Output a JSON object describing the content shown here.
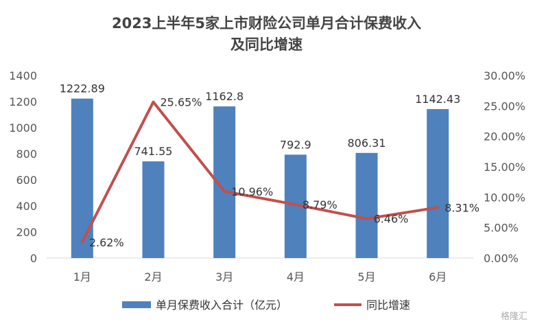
{
  "chart_data": {
    "type": "bar",
    "title_line1": "2023上半年5家上市财险公司单月合计保费收入",
    "title_line2": "及同比增速",
    "categories": [
      "1月",
      "2月",
      "3月",
      "4月",
      "5月",
      "6月"
    ],
    "series": [
      {
        "name": "单月保费收入合计（亿元）",
        "type": "bar",
        "axis": "left",
        "color": "#4f81bd",
        "values": [
          1222.89,
          741.55,
          1162.8,
          792.9,
          806.31,
          1142.43
        ],
        "labels": [
          "1222.89",
          "741.55",
          "1162.8",
          "792.9",
          "806.31",
          "1142.43"
        ]
      },
      {
        "name": "同比增速",
        "type": "line",
        "axis": "right",
        "color": "#c0504d",
        "values": [
          2.62,
          25.65,
          10.96,
          8.79,
          6.46,
          8.31
        ],
        "labels": [
          "2.62%",
          "25.65%",
          "10.96%",
          "8.79%",
          "6.46%",
          "8.31%"
        ]
      }
    ],
    "y_left": {
      "min": 0,
      "max": 1400,
      "ticks": [
        "0",
        "200",
        "400",
        "600",
        "800",
        "1000",
        "1200",
        "1400"
      ]
    },
    "y_right": {
      "min": 0,
      "max": 30,
      "ticks": [
        "0.00%",
        "5.00%",
        "10.00%",
        "15.00%",
        "20.00%",
        "25.00%",
        "30.00%"
      ]
    },
    "legend_position": "bottom",
    "grid": false
  },
  "watermark": "格隆汇"
}
